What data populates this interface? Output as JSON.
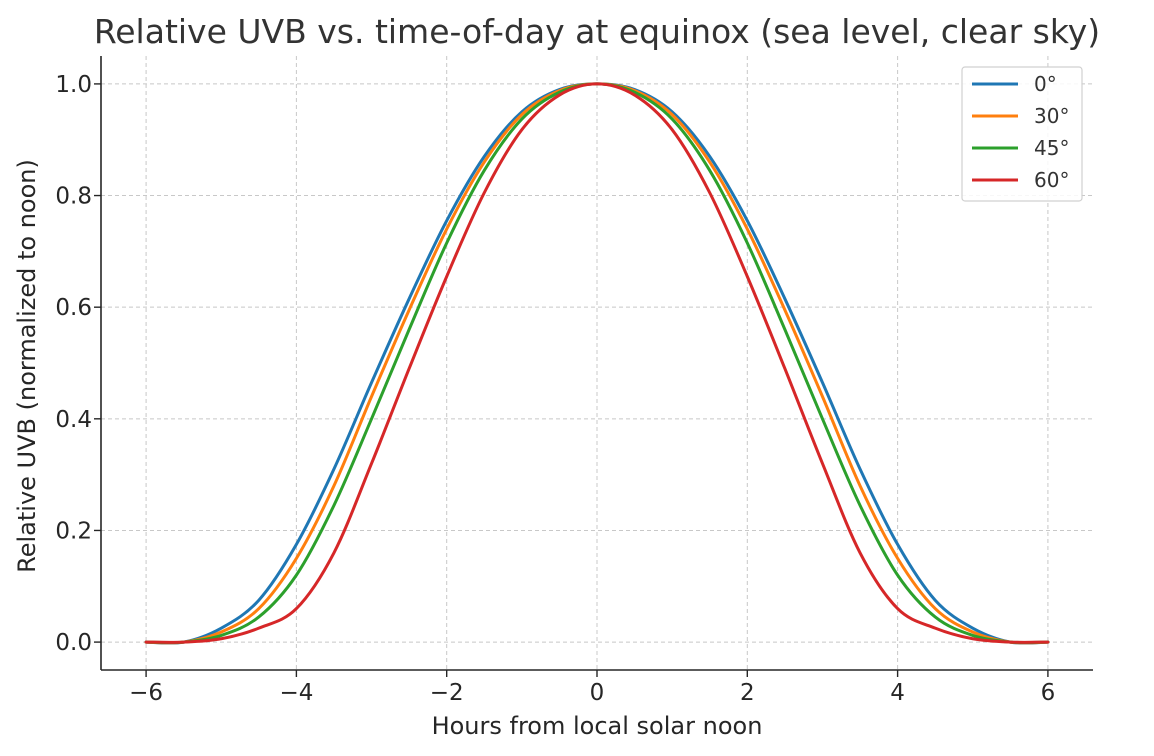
{
  "chart_data": {
    "type": "line",
    "title": "Relative UVB vs. time-of-day at equinox (sea level, clear sky)",
    "xlabel": "Hours from local solar noon",
    "ylabel": "Relative UVB (normalized to noon)",
    "xlim": [
      -6.6,
      6.6
    ],
    "ylim": [
      -0.05,
      1.05
    ],
    "xticks": [
      -6,
      -4,
      -2,
      0,
      2,
      4,
      6
    ],
    "xtick_labels": [
      "−6",
      "−4",
      "−2",
      "0",
      "2",
      "4",
      "6"
    ],
    "yticks": [
      0.0,
      0.2,
      0.4,
      0.6,
      0.8,
      1.0
    ],
    "ytick_labels": [
      "0.0",
      "0.2",
      "0.4",
      "0.6",
      "0.8",
      "1.0"
    ],
    "grid": true,
    "legend_position": "top-right",
    "x": [
      -6,
      -5.5,
      -5,
      -4.5,
      -4,
      -3.5,
      -3,
      -2.5,
      -2,
      -1.5,
      -1,
      -0.5,
      0,
      0.5,
      1,
      1.5,
      2,
      2.5,
      3,
      3.5,
      4,
      4.5,
      5,
      5.5,
      6
    ],
    "series": [
      {
        "name": "0°",
        "color": "#1f77b4",
        "values": [
          0.0,
          0.0,
          0.025,
          0.075,
          0.175,
          0.31,
          0.465,
          0.615,
          0.755,
          0.87,
          0.95,
          0.99,
          1.0,
          0.99,
          0.95,
          0.87,
          0.755,
          0.615,
          0.465,
          0.31,
          0.175,
          0.075,
          0.025,
          0.0,
          0.0
        ]
      },
      {
        "name": "30°",
        "color": "#ff7f0e",
        "values": [
          0.0,
          0.0,
          0.018,
          0.06,
          0.15,
          0.28,
          0.44,
          0.595,
          0.74,
          0.86,
          0.945,
          0.988,
          1.0,
          0.988,
          0.945,
          0.86,
          0.74,
          0.595,
          0.44,
          0.28,
          0.15,
          0.06,
          0.018,
          0.0,
          0.0
        ]
      },
      {
        "name": "45°",
        "color": "#2ca02c",
        "values": [
          0.0,
          0.0,
          0.012,
          0.045,
          0.12,
          0.245,
          0.4,
          0.56,
          0.715,
          0.845,
          0.937,
          0.985,
          1.0,
          0.985,
          0.937,
          0.845,
          0.715,
          0.56,
          0.4,
          0.245,
          0.12,
          0.045,
          0.012,
          0.0,
          0.0
        ]
      },
      {
        "name": "60°",
        "color": "#d62728",
        "values": [
          0.0,
          0.0,
          0.006,
          0.025,
          0.06,
          0.16,
          0.32,
          0.49,
          0.655,
          0.805,
          0.918,
          0.98,
          1.0,
          0.98,
          0.918,
          0.805,
          0.655,
          0.49,
          0.32,
          0.16,
          0.06,
          0.025,
          0.006,
          0.0,
          0.0
        ]
      }
    ]
  }
}
